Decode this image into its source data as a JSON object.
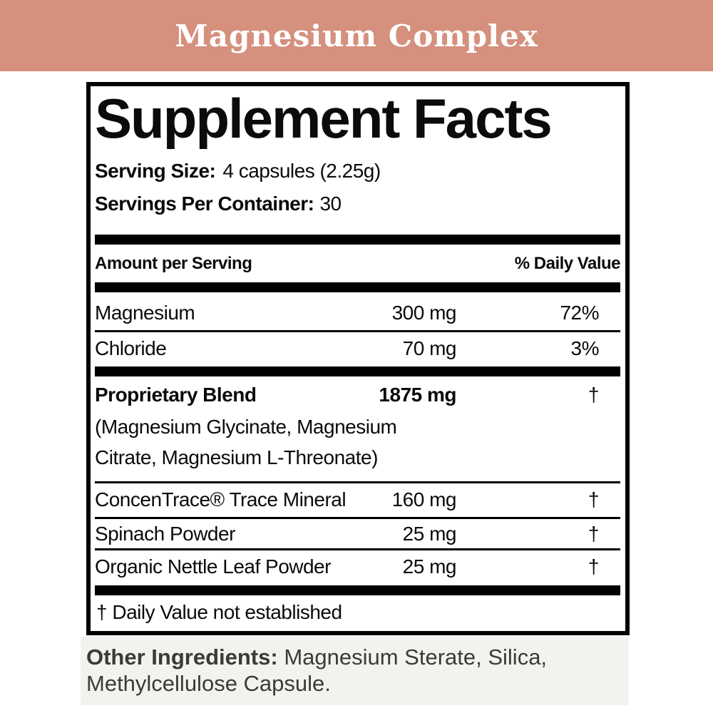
{
  "banner": {
    "title": "Magnesium Complex"
  },
  "colors": {
    "banner": "#d5907e",
    "strip": "#f2f3ee",
    "other_text": "#3a3a38"
  },
  "label": {
    "title": "Supplement Facts",
    "serving_size_label": "Serving Size:",
    "serving_size_value": "4 capsules (2.25g)",
    "servings_per_container_label": "Servings Per Container:",
    "servings_per_container_value": "30",
    "col_left_header": "Amount per Serving",
    "col_right_header": "% Daily Value",
    "rows": [
      {
        "name": "Magnesium",
        "amount": "300 mg",
        "dv": "72%",
        "bold": false,
        "divider_after": "thin"
      },
      {
        "name": "Chloride",
        "amount": "70 mg",
        "dv": "3%",
        "bold": false,
        "divider_after": "thick"
      },
      {
        "name": "Proprietary Blend",
        "amount": "1875 mg",
        "dv": "†",
        "bold": true,
        "sub_lines": [
          "(Magnesium Glycinate, Magnesium",
          "Citrate, Magnesium L-Threonate)"
        ],
        "divider_after": "thin"
      },
      {
        "name": "ConcenTrace® Trace Mineral",
        "amount": "160 mg",
        "dv": "†",
        "bold": false,
        "divider_after": "thin"
      },
      {
        "name": "Spinach Powder",
        "amount": "25 mg",
        "dv": "†",
        "bold": false,
        "divider_after": "thin"
      },
      {
        "name": "Organic Nettle Leaf Powder",
        "amount": "25 mg",
        "dv": "†",
        "bold": false,
        "divider_after": "thick"
      }
    ],
    "footnote": "† Daily Value not established"
  },
  "other_ingredients": {
    "label": "Other Ingredients:",
    "value": "Magnesium Sterate, Silica, Methylcellulose Capsule."
  }
}
